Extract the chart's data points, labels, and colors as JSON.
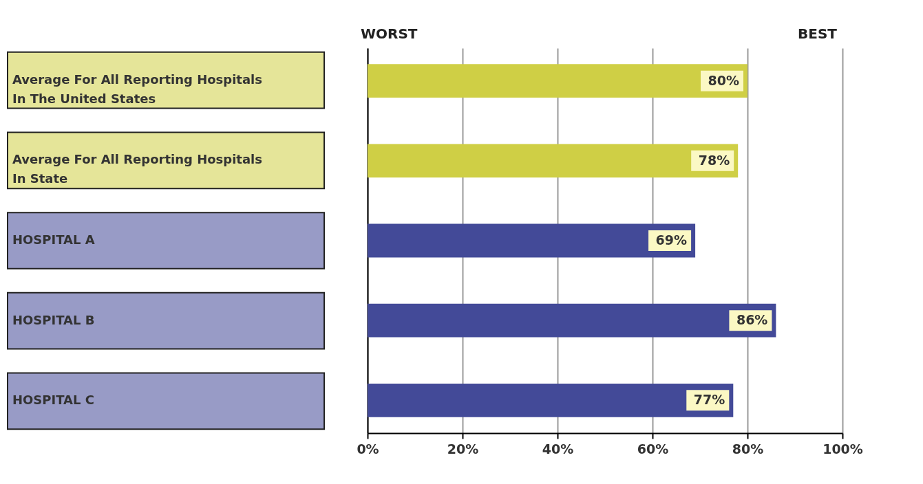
{
  "chart_data": {
    "type": "bar",
    "orientation": "horizontal",
    "categories": [
      "Average For All Reporting Hospitals In The United States",
      "Average For All Reporting Hospitals In State",
      "HOSPITAL A",
      "HOSPITAL B",
      "HOSPITAL C"
    ],
    "values": [
      80,
      78,
      69,
      86,
      77
    ],
    "colors": [
      "#cfcf45",
      "#cfcf45",
      "#434a98",
      "#434a98",
      "#434a98"
    ],
    "value_labels": [
      "80%",
      "78%",
      "69%",
      "86%",
      "77%"
    ],
    "xlim": [
      0,
      100
    ],
    "xticks": [
      {
        "value": 0,
        "label": "0%"
      },
      {
        "value": 20,
        "label": "20%"
      },
      {
        "value": 40,
        "label": "40%"
      },
      {
        "value": 60,
        "label": "60%"
      },
      {
        "value": 80,
        "label": "80%"
      },
      {
        "value": 100,
        "label": "100%"
      }
    ],
    "grid": "x",
    "annotations": [
      "WORST",
      "BEST"
    ]
  }
}
